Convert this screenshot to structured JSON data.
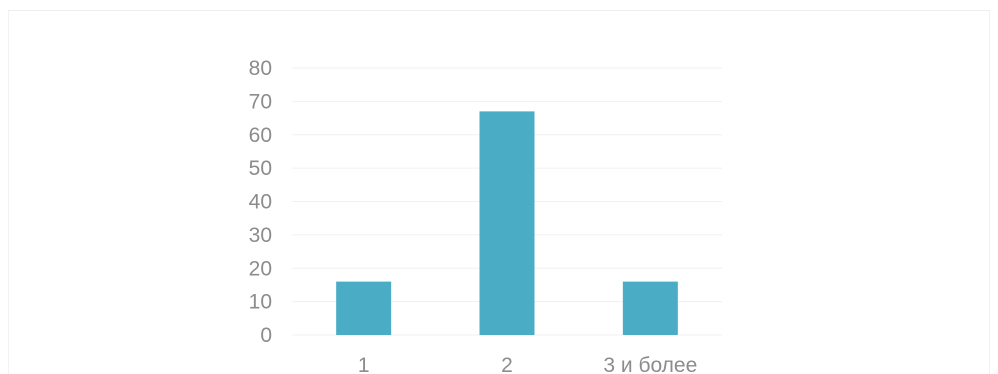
{
  "chart_data": {
    "type": "bar",
    "categories": [
      "1",
      "2",
      "3 и более"
    ],
    "values": [
      16,
      67,
      16
    ],
    "ylim": [
      0,
      80
    ],
    "yticks": [
      0,
      10,
      20,
      30,
      40,
      50,
      60,
      70,
      80
    ],
    "grid": true,
    "legend": "none",
    "colors": {
      "bar": "#4BACC6",
      "grid": "#f0f0f0",
      "tick_text": "#8c8c8c"
    }
  }
}
